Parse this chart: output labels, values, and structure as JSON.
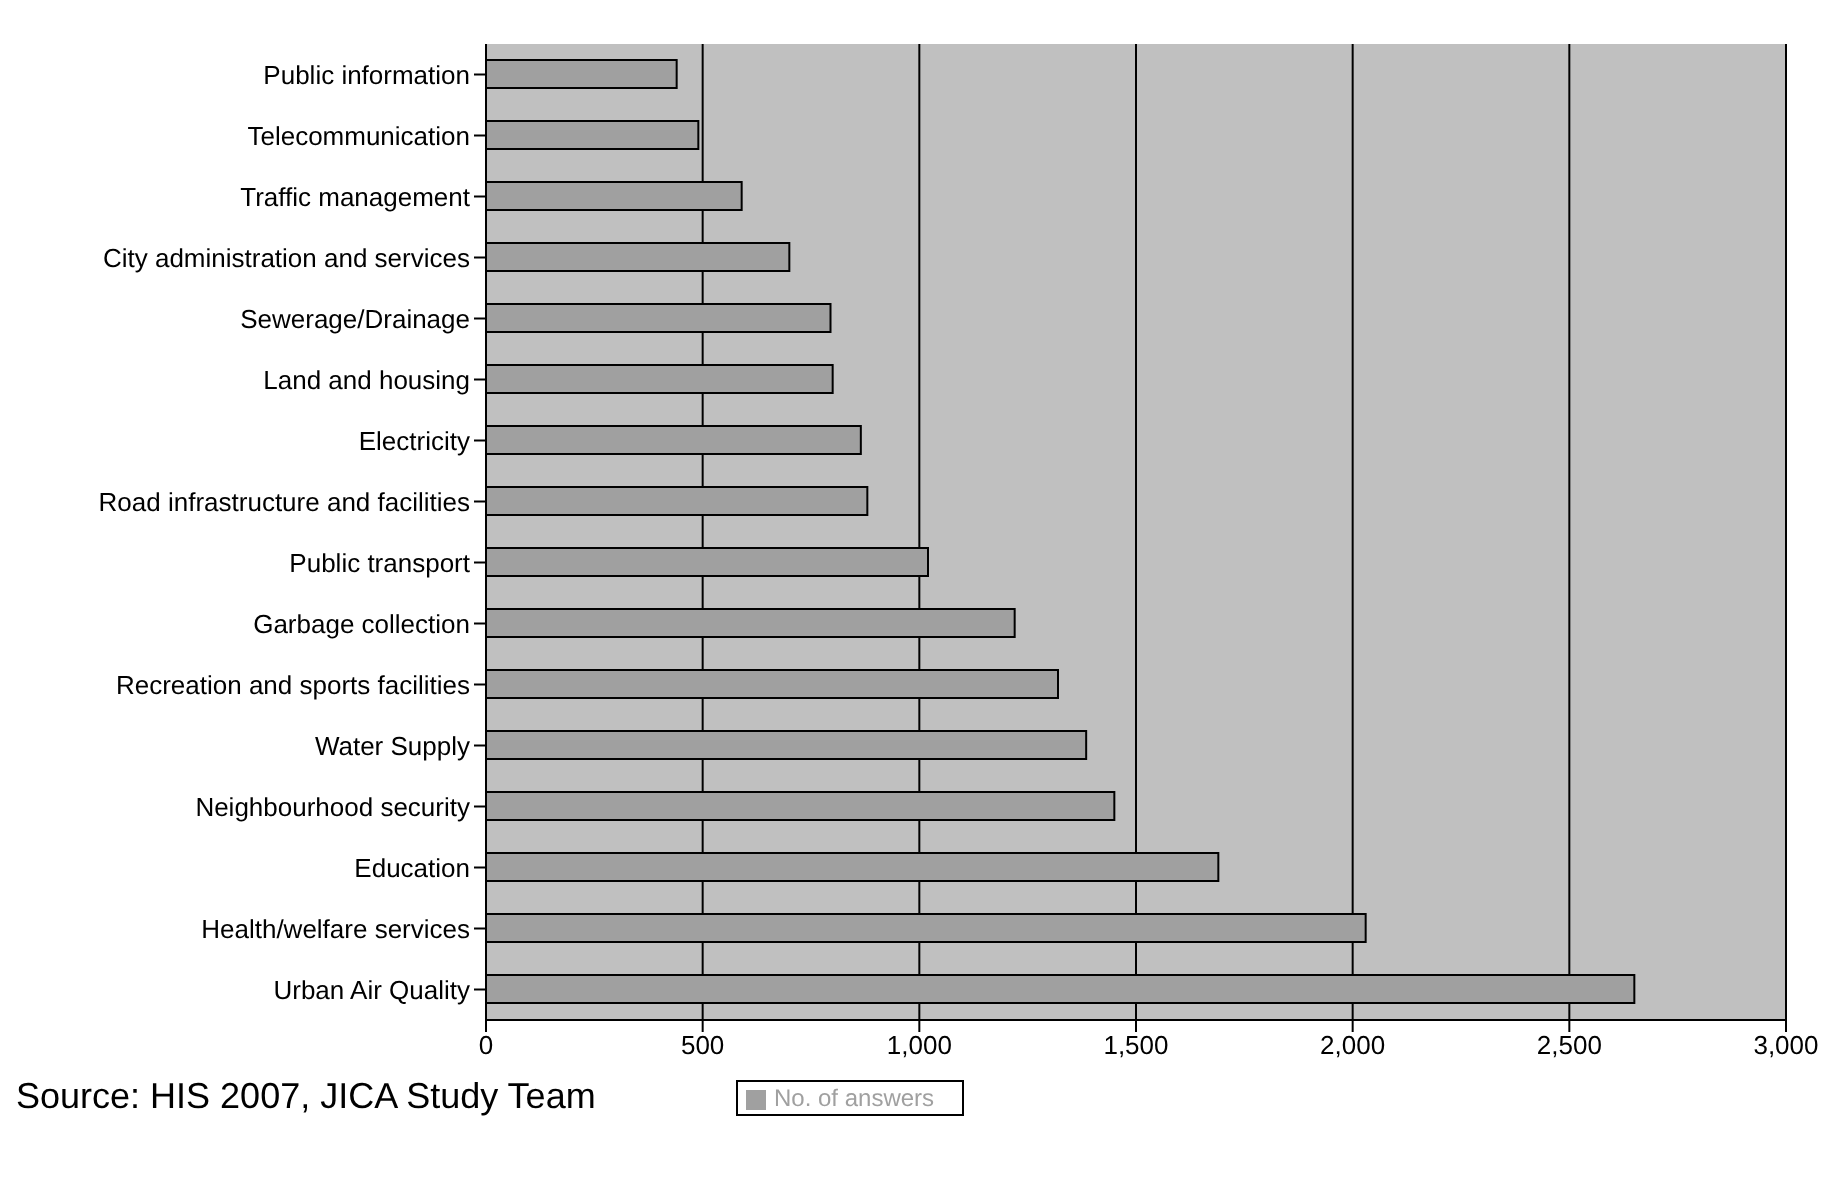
{
  "chart_data": {
    "type": "bar",
    "orientation": "horizontal",
    "categories": [
      "Public information",
      "Telecommunication",
      "Traffic management",
      "City administration and services",
      "Sewerage/Drainage",
      "Land and housing",
      "Electricity",
      "Road infrastructure and facilities",
      "Public transport",
      "Garbage collection",
      "Recreation and sports facilities",
      "Water Supply",
      "Neighbourhood security",
      "Education",
      "Health/welfare services",
      "Urban Air Quality"
    ],
    "series": [
      {
        "name": "No. of answers",
        "color": "#a0a0a0",
        "values": [
          440,
          490,
          590,
          700,
          795,
          800,
          865,
          880,
          1020,
          1220,
          1320,
          1385,
          1450,
          1690,
          2030,
          2650
        ]
      }
    ],
    "xlim": [
      0,
      3000
    ],
    "xticks": [
      0,
      {
        "value": 500,
        "label": "500"
      },
      {
        "value": 1000,
        "label": "1,000"
      },
      {
        "value": 1500,
        "label": "1,500"
      },
      {
        "value": 2000,
        "label": "2,000"
      },
      {
        "value": 2500,
        "label": "2,500"
      },
      {
        "value": 3000,
        "label": "3,000"
      }
    ],
    "grid": "x",
    "legend": "bottom",
    "annotations": [
      "Source: HIS 2007, JICA Study Team"
    ]
  }
}
